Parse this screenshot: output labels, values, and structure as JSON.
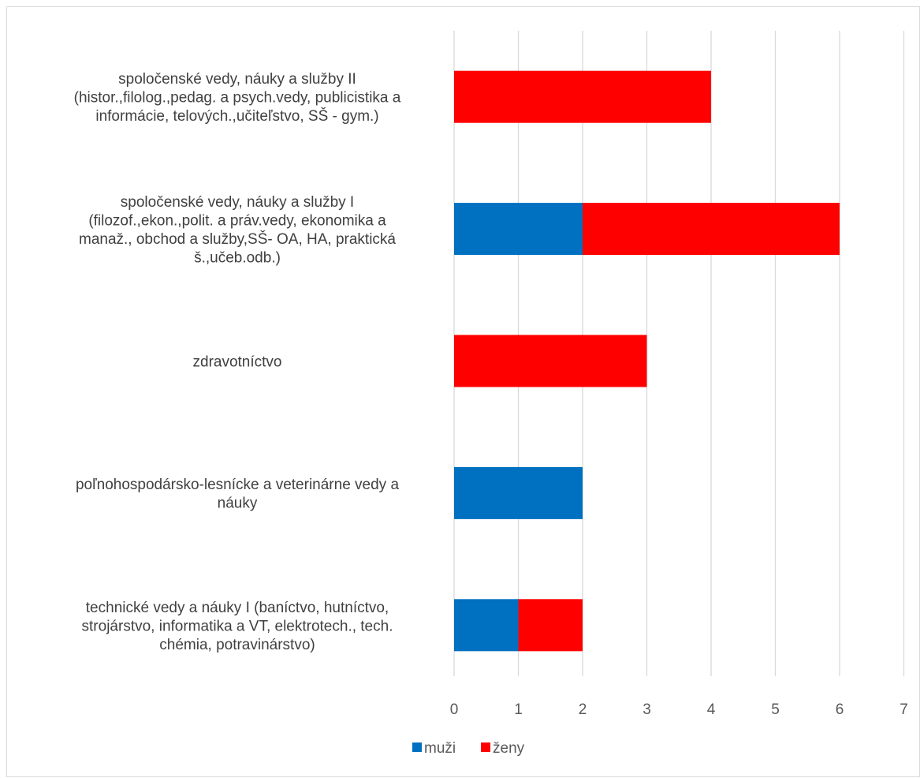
{
  "chart_data": {
    "type": "bar",
    "orientation": "horizontal",
    "stacked": true,
    "categories": [
      "spoločenské vedy, náuky a služby II (histor.,filolog.,pedag. a psych.vedy, publicistika a informácie, telových.,učiteľstvo, SŠ - gym.)",
      "spoločenské vedy, náuky a služby I (filozof.,ekon.,polit. a práv.vedy, ekonomika a manaž., obchod a služby,SŠ- OA, HA, praktická š.,učeb.odb.)",
      "zdravotníctvo",
      "poľnohospodársko-lesnícke a veterinárne vedy a náuky",
      "technické vedy a náuky I (baníctvo, hutníctvo, strojárstvo, informatika a VT, elektrotech., tech. chémia, potravinárstvo)"
    ],
    "category_label_lines": [
      [
        "spoločenské vedy, náuky a služby II",
        "(histor.,filolog.,pedag. a psych.vedy, publicistika a",
        "informácie, telových.,učiteľstvo, SŠ - gym.)"
      ],
      [
        "spoločenské vedy, náuky a služby I",
        "(filozof.,ekon.,polit. a práv.vedy, ekonomika a",
        "manaž., obchod a služby,SŠ- OA, HA, praktická",
        "š.,učeb.odb.)"
      ],
      [
        "zdravotníctvo"
      ],
      [
        "poľnohospodársko-lesnícke a veterinárne vedy a",
        "náuky"
      ],
      [
        "technické vedy a náuky I (baníctvo, hutníctvo,",
        "strojárstvo, informatika a VT, elektrotech., tech.",
        "chémia, potravinárstvo)"
      ]
    ],
    "series": [
      {
        "name": "muži",
        "color": "#0070c0",
        "values": [
          0,
          2,
          0,
          2,
          1
        ]
      },
      {
        "name": "ženy",
        "color": "#ff0000",
        "values": [
          4,
          4,
          3,
          0,
          1
        ]
      }
    ],
    "xlim": [
      0,
      7
    ],
    "xticks": [
      "0",
      "1",
      "2",
      "3",
      "4",
      "5",
      "6",
      "7"
    ],
    "xlabel": "",
    "ylabel": "",
    "title": "",
    "grid": "vertical",
    "legend": "bottom"
  }
}
